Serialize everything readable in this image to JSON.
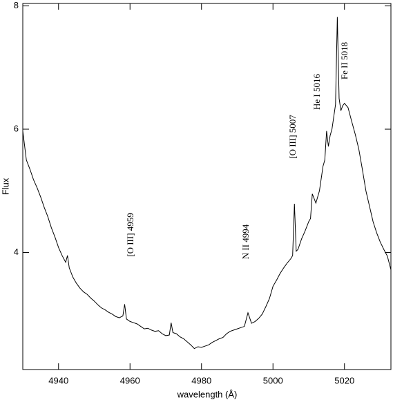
{
  "chart_data": {
    "type": "line",
    "xlabel": "wavelength (Å)",
    "ylabel": "Flux",
    "xlim": [
      4930,
      5033
    ],
    "ylim": [
      2.1,
      8.04
    ],
    "xticks": [
      4940,
      4960,
      4980,
      5000,
      5020
    ],
    "yticks": [
      4,
      6,
      8
    ],
    "color": "#000000",
    "annotations": [
      "[O III] 4959",
      "N II 4994",
      "[O III] 5007",
      "He I 5016",
      "Fe II 5018"
    ],
    "x": [
      4930,
      4931,
      4932,
      4933,
      4934,
      4935,
      4936,
      4937,
      4938,
      4939,
      4940,
      4941,
      4942,
      4942.5,
      4943,
      4944,
      4945,
      4946,
      4947,
      4948,
      4949,
      4950,
      4951,
      4952,
      4953,
      4954,
      4955,
      4956,
      4957,
      4958,
      4958.5,
      4959,
      4960,
      4961,
      4962,
      4963,
      4964,
      4965,
      4966,
      4967,
      4968,
      4969,
      4970,
      4971,
      4971.5,
      4972,
      4973,
      4974,
      4975,
      4976,
      4977,
      4978,
      4979,
      4980,
      4981,
      4982,
      4983,
      4984,
      4985,
      4986,
      4987,
      4988,
      4989,
      4990,
      4991,
      4992,
      4993,
      4994,
      4995,
      4996,
      4997,
      4998,
      4999,
      5000,
      5001,
      5002,
      5003,
      5004,
      5005,
      5005.5,
      5006,
      5006.5,
      5007,
      5008,
      5009,
      5010,
      5010.5,
      5011,
      5012,
      5013,
      5014,
      5014.5,
      5015,
      5015.5,
      5016,
      5016.5,
      5017,
      5017.5,
      5018,
      5018.5,
      5019,
      5019.5,
      5020,
      5021,
      5022,
      5023,
      5024,
      5025,
      5026,
      5027,
      5028,
      5029,
      5030,
      5031,
      5032,
      5033
    ],
    "values": [
      5.97,
      5.5,
      5.35,
      5.18,
      5.05,
      4.9,
      4.73,
      4.58,
      4.4,
      4.25,
      4.08,
      3.95,
      3.84,
      3.95,
      3.75,
      3.6,
      3.5,
      3.42,
      3.36,
      3.32,
      3.26,
      3.21,
      3.15,
      3.1,
      3.07,
      3.03,
      3.0,
      2.96,
      2.94,
      2.97,
      3.16,
      2.92,
      2.88,
      2.86,
      2.84,
      2.8,
      2.76,
      2.77,
      2.74,
      2.72,
      2.73,
      2.68,
      2.65,
      2.66,
      2.86,
      2.7,
      2.68,
      2.63,
      2.6,
      2.55,
      2.5,
      2.44,
      2.47,
      2.46,
      2.48,
      2.5,
      2.54,
      2.57,
      2.6,
      2.62,
      2.68,
      2.72,
      2.74,
      2.76,
      2.78,
      2.8,
      3.02,
      2.85,
      2.88,
      2.93,
      3.0,
      3.12,
      3.25,
      3.45,
      3.55,
      3.66,
      3.75,
      3.83,
      3.9,
      3.95,
      4.79,
      4.02,
      4.05,
      4.22,
      4.35,
      4.5,
      4.55,
      4.95,
      4.8,
      5.0,
      5.4,
      5.5,
      5.97,
      5.72,
      5.9,
      6.0,
      6.2,
      6.4,
      7.82,
      6.5,
      6.3,
      6.38,
      6.42,
      6.35,
      6.13,
      5.92,
      5.68,
      5.35,
      5.0,
      4.75,
      4.5,
      4.32,
      4.17,
      4.05,
      3.94,
      3.72
    ]
  }
}
